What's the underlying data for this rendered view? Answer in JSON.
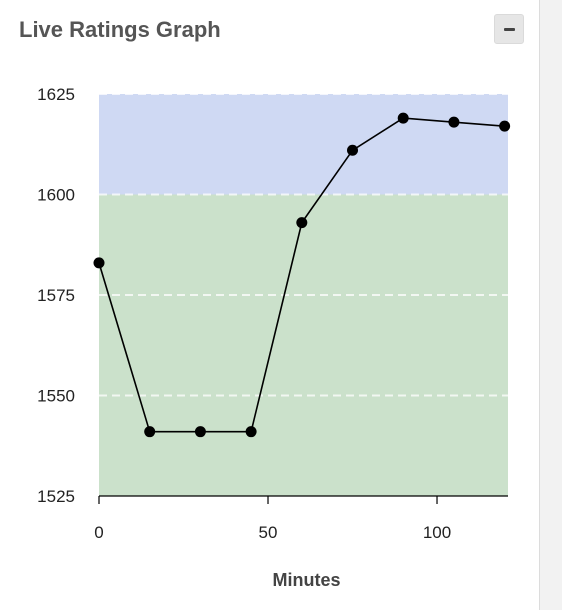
{
  "panel": {
    "title": "Live Ratings Graph"
  },
  "icons": {
    "collapse": "minus-icon"
  },
  "colors": {
    "upper_band": "#cfd9f3",
    "lower_band": "#cbe1cb",
    "line": "#000000",
    "point": "#000000"
  },
  "chart_data": {
    "type": "line",
    "title": "",
    "xlabel": "Minutes",
    "ylabel": "",
    "xlim": [
      0,
      121
    ],
    "ylim": [
      1525,
      1625
    ],
    "xticks": [
      0,
      50,
      100
    ],
    "yticks": [
      1525,
      1550,
      1575,
      1600,
      1625
    ],
    "grid": "horizontal dashed",
    "bands": [
      {
        "from": 1600,
        "to": 1625,
        "color": "#cfd9f3"
      },
      {
        "from": 1525,
        "to": 1600,
        "color": "#cbe1cb"
      }
    ],
    "series": [
      {
        "x": [
          0,
          15,
          30,
          45,
          60,
          75,
          90,
          105,
          120
        ],
        "y": [
          1583,
          1541,
          1541,
          1541,
          1593,
          1611,
          1619,
          1618,
          1617
        ]
      }
    ]
  }
}
